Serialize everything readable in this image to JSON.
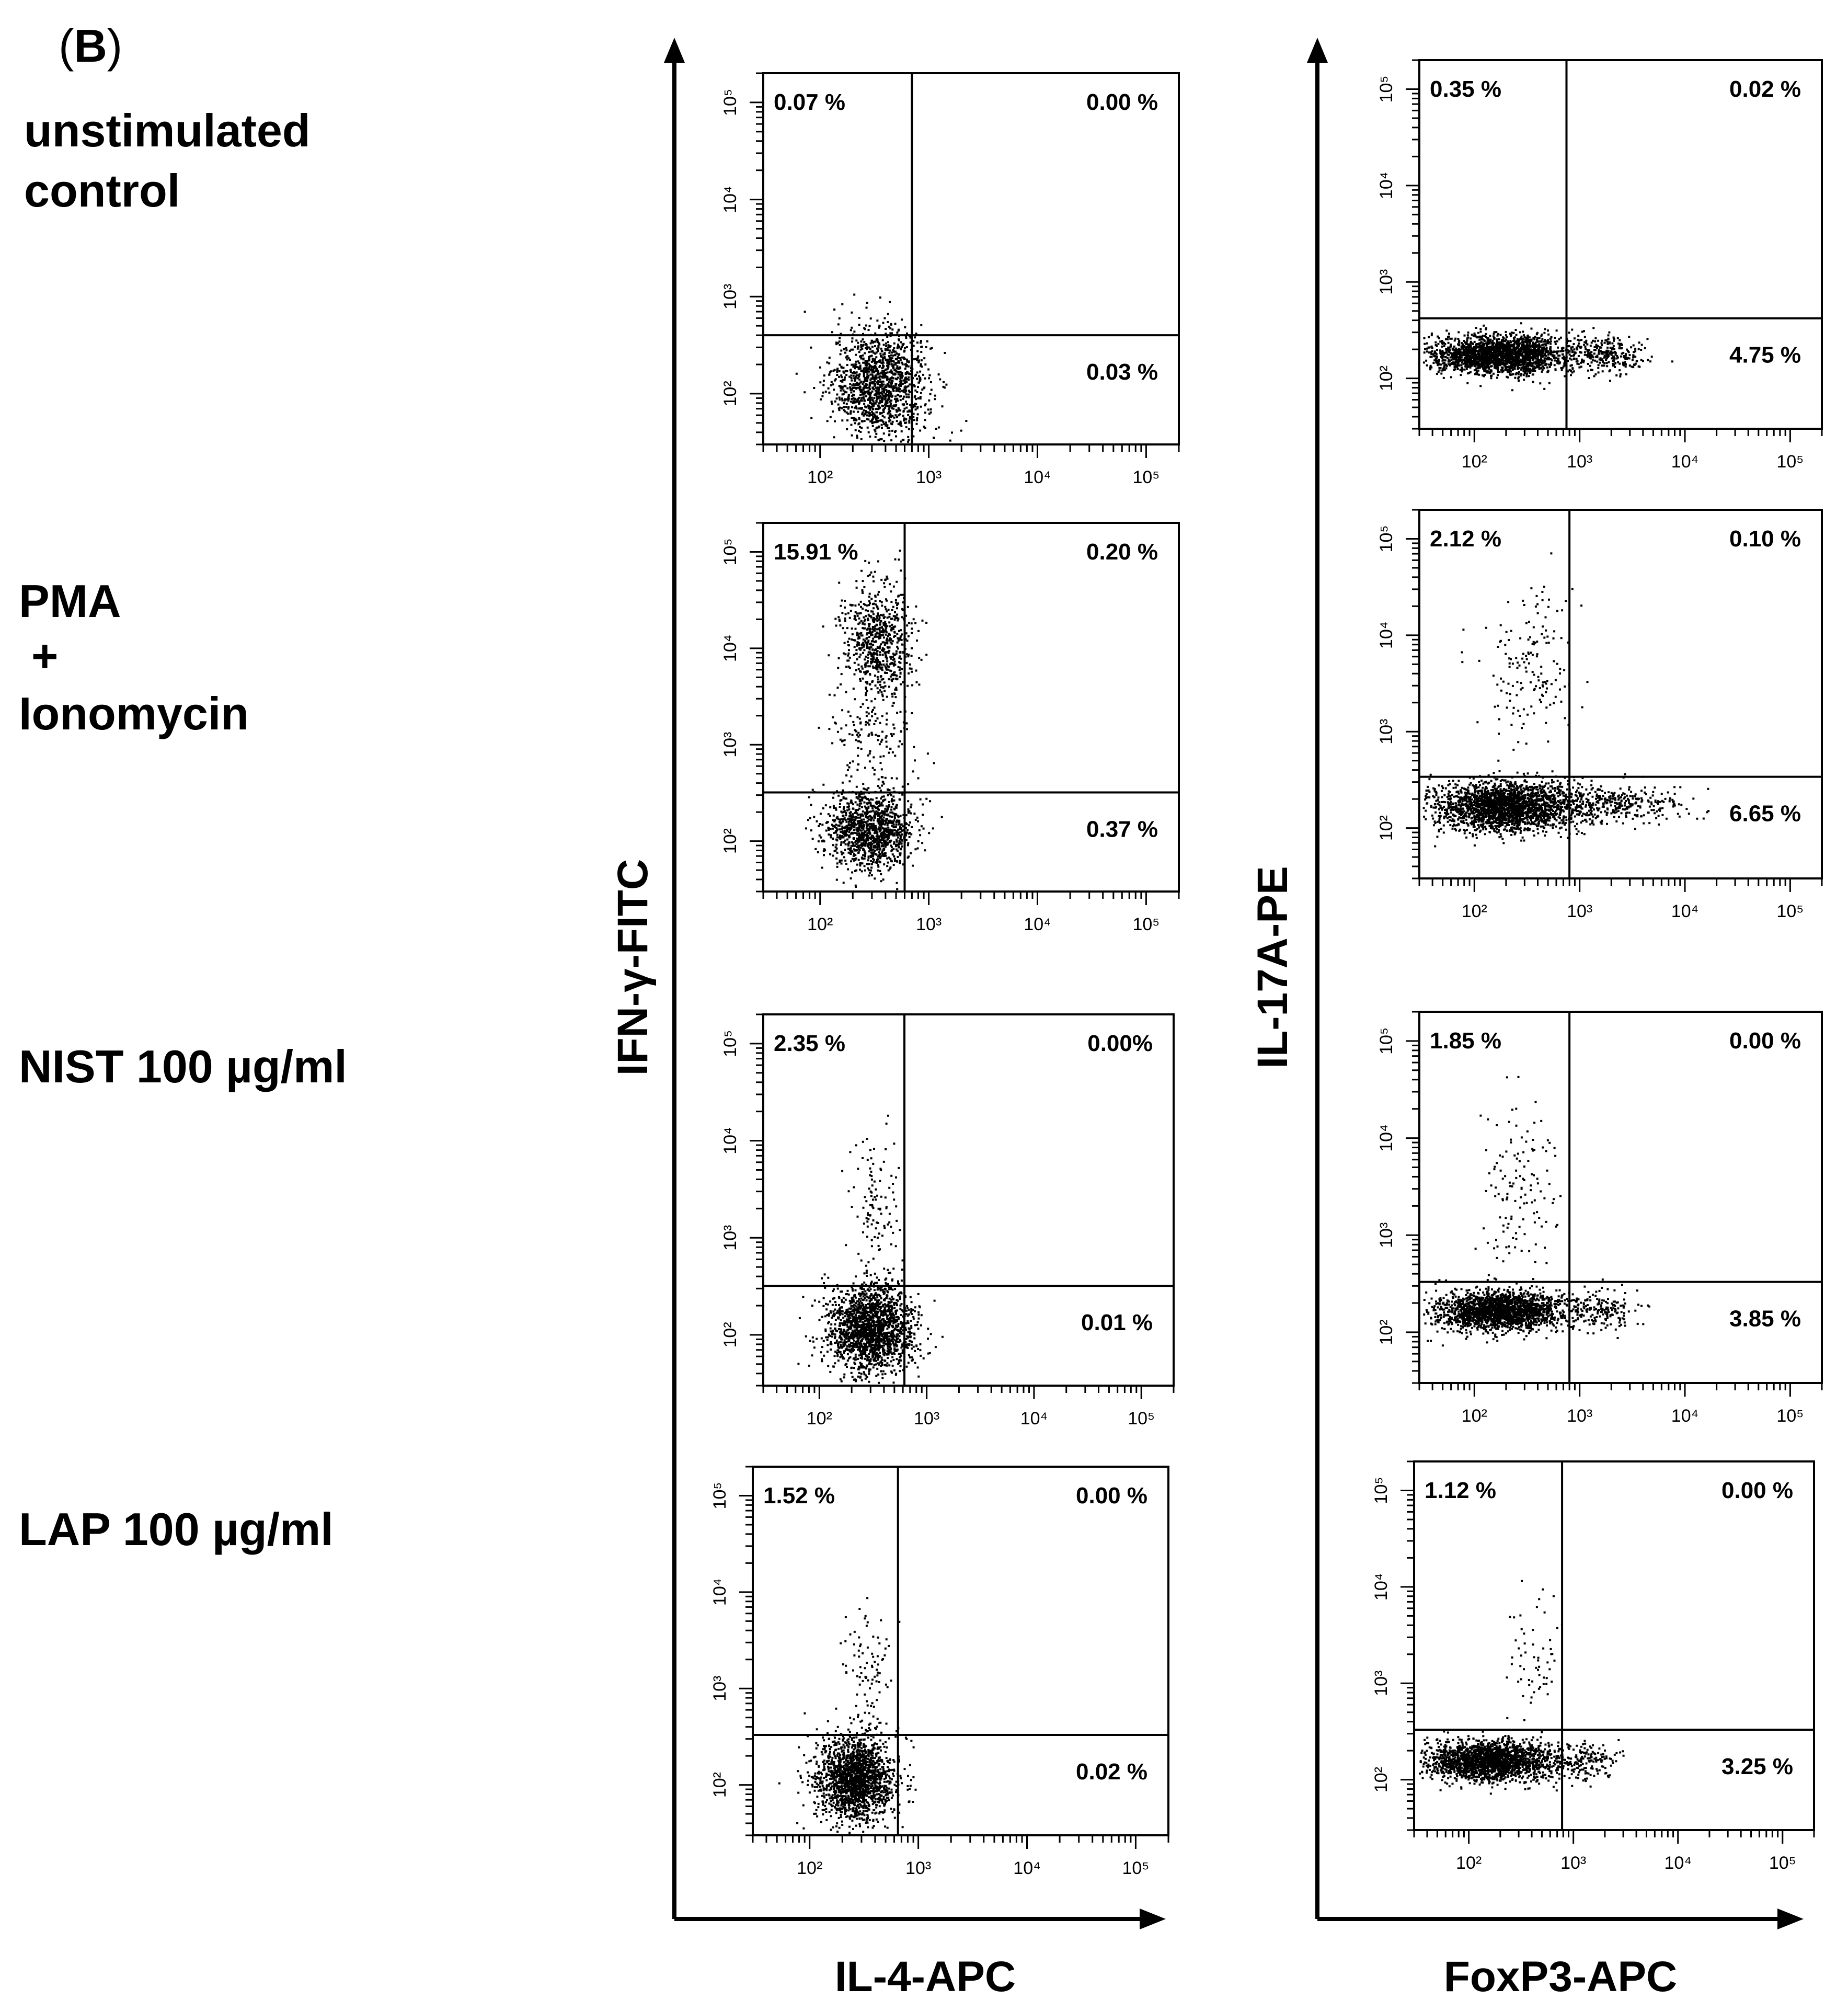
{
  "panel_label": {
    "open": "(",
    "letter": "B",
    "close": ")"
  },
  "conditions": [
    {
      "lines": [
        "unstimulated",
        "control"
      ]
    },
    {
      "lines": [
        "PMA",
        "+",
        "Ionomycin"
      ]
    },
    {
      "lines": [
        "NIST 100 µg/ml"
      ]
    },
    {
      "lines": [
        "LAP 100 µg/ml"
      ]
    }
  ],
  "columns": [
    {
      "y_label": "IFN-γ-FITC",
      "x_label": "IL-4-APC"
    },
    {
      "y_label": "IL-17A-PE",
      "x_label": "FoxP3-APC"
    }
  ],
  "tick_labels": [
    "10²",
    "10³",
    "10⁴",
    "10⁵"
  ],
  "colors": {
    "ink": "#000000",
    "background": "#ffffff"
  },
  "chart_data": [
    {
      "type": "scatter",
      "title": "unstimulated control",
      "xlabel": "IL-4-APC",
      "ylabel": "IFN-γ-FITC",
      "xscale": "log",
      "yscale": "log",
      "xlim": [
        30,
        200000
      ],
      "ylim": [
        30,
        200000
      ],
      "xticks": [
        100,
        1000,
        10000,
        100000
      ],
      "yticks": [
        100,
        1000,
        10000,
        100000
      ],
      "gate": {
        "x": 700,
        "y": 400
      },
      "quadrants": {
        "UL": "0.07 %",
        "UR": "0.00 %",
        "LR": "0.03 %"
      },
      "populations": [
        {
          "x_center": 350,
          "y_center": 130,
          "x_spread": 0.22,
          "y_spread": 0.28,
          "count": 1400
        }
      ]
    },
    {
      "type": "scatter",
      "title": "unstimulated control",
      "xlabel": "FoxP3-APC",
      "ylabel": "IL-17A-PE",
      "xscale": "log",
      "yscale": "log",
      "xlim": [
        30,
        200000
      ],
      "ylim": [
        30,
        200000
      ],
      "xticks": [
        100,
        1000,
        10000,
        100000
      ],
      "yticks": [
        100,
        1000,
        10000,
        100000
      ],
      "gate": {
        "x": 750,
        "y": 420
      },
      "quadrants": {
        "UL": "0.35 %",
        "UR": "0.02 %",
        "LR": "4.75 %"
      },
      "populations": [
        {
          "x_center": 170,
          "y_center": 180,
          "x_spread": 0.34,
          "y_spread": 0.1,
          "count": 2200
        },
        {
          "x_center": 1700,
          "y_center": 180,
          "x_spread": 0.18,
          "y_spread": 0.1,
          "count": 260
        }
      ]
    },
    {
      "type": "scatter",
      "title": "PMA + Ionomycin",
      "xlabel": "IL-4-APC",
      "ylabel": "IFN-γ-FITC",
      "xscale": "log",
      "yscale": "log",
      "xlim": [
        30,
        200000
      ],
      "ylim": [
        30,
        200000
      ],
      "xticks": [
        100,
        1000,
        10000,
        100000
      ],
      "yticks": [
        100,
        1000,
        10000,
        100000
      ],
      "gate": {
        "x": 600,
        "y": 320
      },
      "quadrants": {
        "UL": "15.91 %",
        "UR": "0.20 %",
        "LR": "0.37 %"
      },
      "populations": [
        {
          "x_center": 280,
          "y_center": 130,
          "x_spread": 0.2,
          "y_spread": 0.2,
          "count": 1200
        },
        {
          "x_center": 330,
          "y_center": 12000,
          "x_spread": 0.16,
          "y_spread": 0.3,
          "count": 700
        },
        {
          "x_center": 280,
          "y_center": 1200,
          "x_spread": 0.2,
          "y_spread": 0.35,
          "count": 160
        }
      ]
    },
    {
      "type": "scatter",
      "title": "PMA + Ionomycin",
      "xlabel": "FoxP3-APC",
      "ylabel": "IL-17A-PE",
      "xscale": "log",
      "yscale": "log",
      "xlim": [
        30,
        200000
      ],
      "ylim": [
        30,
        200000
      ],
      "xticks": [
        100,
        1000,
        10000,
        100000
      ],
      "yticks": [
        100,
        1000,
        10000,
        100000
      ],
      "gate": {
        "x": 800,
        "y": 340
      },
      "quadrants": {
        "UL": "2.12 %",
        "UR": "0.10 %",
        "LR": "6.65 %"
      },
      "populations": [
        {
          "x_center": 200,
          "y_center": 170,
          "x_spread": 0.35,
          "y_spread": 0.13,
          "count": 2300
        },
        {
          "x_center": 2200,
          "y_center": 180,
          "x_spread": 0.3,
          "y_spread": 0.1,
          "count": 320
        },
        {
          "x_center": 350,
          "y_center": 5000,
          "x_spread": 0.22,
          "y_spread": 0.45,
          "count": 160
        }
      ]
    },
    {
      "type": "scatter",
      "title": "NIST 100 µg/ml",
      "xlabel": "IL-4-APC",
      "ylabel": "IFN-γ-FITC",
      "xscale": "log",
      "yscale": "log",
      "xlim": [
        30,
        200000
      ],
      "ylim": [
        30,
        200000
      ],
      "xticks": [
        100,
        1000,
        10000,
        100000
      ],
      "yticks": [
        100,
        1000,
        10000,
        100000
      ],
      "gate": {
        "x": 620,
        "y": 320
      },
      "quadrants": {
        "UL": "2.35 %",
        "UR": "0.00%",
        "LR": "0.01 %"
      },
      "populations": [
        {
          "x_center": 290,
          "y_center": 120,
          "x_spread": 0.2,
          "y_spread": 0.22,
          "count": 1800
        },
        {
          "x_center": 330,
          "y_center": 1800,
          "x_spread": 0.12,
          "y_spread": 0.38,
          "count": 120
        }
      ]
    },
    {
      "type": "scatter",
      "title": "NIST 100 µg/ml",
      "xlabel": "FoxP3-APC",
      "ylabel": "IL-17A-PE",
      "xscale": "log",
      "yscale": "log",
      "xlim": [
        30,
        200000
      ],
      "ylim": [
        30,
        200000
      ],
      "xticks": [
        100,
        1000,
        10000,
        100000
      ],
      "yticks": [
        100,
        1000,
        10000,
        100000
      ],
      "gate": {
        "x": 800,
        "y": 330
      },
      "quadrants": {
        "UL": "1.85 %",
        "UR": "0.00 %",
        "LR": "3.85 %"
      },
      "populations": [
        {
          "x_center": 170,
          "y_center": 170,
          "x_spread": 0.3,
          "y_spread": 0.1,
          "count": 2000
        },
        {
          "x_center": 1500,
          "y_center": 170,
          "x_spread": 0.18,
          "y_spread": 0.1,
          "count": 180
        },
        {
          "x_center": 250,
          "y_center": 3000,
          "x_spread": 0.18,
          "y_spread": 0.45,
          "count": 130
        }
      ]
    },
    {
      "type": "scatter",
      "title": "LAP 100 µg/ml",
      "xlabel": "IL-4-APC",
      "ylabel": "IFN-γ-FITC",
      "xscale": "log",
      "yscale": "log",
      "xlim": [
        30,
        200000
      ],
      "ylim": [
        30,
        200000
      ],
      "xticks": [
        100,
        1000,
        10000,
        100000
      ],
      "yticks": [
        100,
        1000,
        10000,
        100000
      ],
      "gate": {
        "x": 650,
        "y": 330
      },
      "quadrants": {
        "UL": "1.52 %",
        "UR": "0.00 %",
        "LR": "0.02 %"
      },
      "populations": [
        {
          "x_center": 260,
          "y_center": 120,
          "x_spread": 0.18,
          "y_spread": 0.22,
          "count": 1800
        },
        {
          "x_center": 330,
          "y_center": 1500,
          "x_spread": 0.12,
          "y_spread": 0.35,
          "count": 90
        }
      ]
    },
    {
      "type": "scatter",
      "title": "LAP 100 µg/ml",
      "xlabel": "FoxP3-APC",
      "ylabel": "IL-17A-PE",
      "xscale": "log",
      "yscale": "log",
      "xlim": [
        30,
        200000
      ],
      "ylim": [
        30,
        200000
      ],
      "xticks": [
        100,
        1000,
        10000,
        100000
      ],
      "yticks": [
        100,
        1000,
        10000,
        100000
      ],
      "gate": {
        "x": 780,
        "y": 330
      },
      "quadrants": {
        "UL": "1.12 %",
        "UR": "0.00 %",
        "LR": "3.25 %"
      },
      "populations": [
        {
          "x_center": 160,
          "y_center": 160,
          "x_spread": 0.3,
          "y_spread": 0.1,
          "count": 2000
        },
        {
          "x_center": 1300,
          "y_center": 160,
          "x_spread": 0.16,
          "y_spread": 0.1,
          "count": 160
        },
        {
          "x_center": 400,
          "y_center": 2000,
          "x_spread": 0.12,
          "y_spread": 0.3,
          "count": 60
        }
      ]
    }
  ]
}
